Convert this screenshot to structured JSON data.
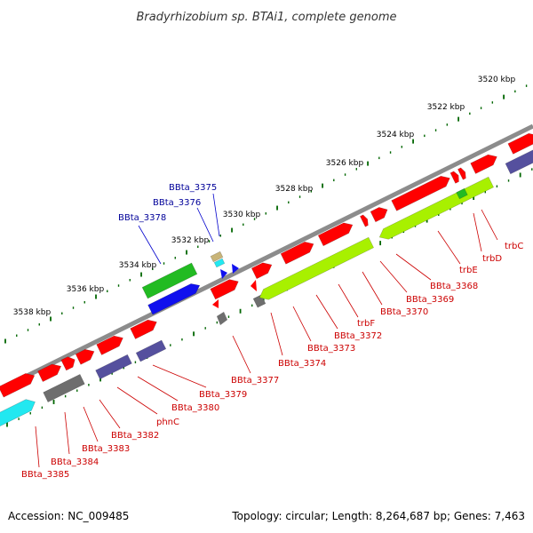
{
  "title": "Bradyrhizobium sp. BTAi1, complete genome",
  "footer": {
    "accession": "Accession: NC_009485",
    "summary": "Topology: circular; Length: 8,264,687 bp; Genes: 7,463"
  },
  "colors": {
    "background": "#ffffff",
    "backbone": "#8c8c8c",
    "forward_red": "#ff0000",
    "grey_gene": "#6e6e6e",
    "lime_gene": "#a8f000",
    "green_gene": "#22bb22",
    "blue_gene": "#1010ee",
    "navy_gene": "#55509e",
    "cyan_gene": "#22e8f0",
    "tan_gene": "#c8b478",
    "red_label": "#cc0000",
    "blue_label": "#000099",
    "tick_dark": "#006600"
  },
  "scale_labels": [
    "3520 kbp",
    "3522 kbp",
    "3524 kbp",
    "3526 kbp",
    "3528 kbp",
    "3530 kbp",
    "3532 kbp",
    "3534 kbp",
    "3536 kbp",
    "3538 kbp"
  ],
  "gene_labels_top": [
    "BBta_3375",
    "BBta_3376",
    "BBta_3378"
  ],
  "gene_labels_bottom": [
    "trbC",
    "trbD",
    "trbE",
    "BBta_3368",
    "BBta_3369",
    "BBta_3370",
    "trbF",
    "BBta_3372",
    "BBta_3373",
    "BBta_3374",
    "BBta_3377",
    "BBta_3379",
    "BBta_3380",
    "phnC",
    "BBta_3382",
    "BBta_3383",
    "BBta_3384",
    "BBta_3385"
  ]
}
